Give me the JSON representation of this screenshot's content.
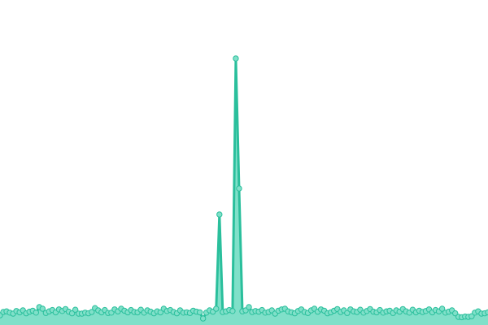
{
  "chart_data": {
    "type": "area",
    "color": "#2abf9c",
    "fill": "#80e0c9",
    "values": [
      3.0,
      4.0,
      4.2,
      3.8,
      3.5,
      4.3,
      3.9,
      4.5,
      3.6,
      4.1,
      4.4,
      3.8,
      5.5,
      5.0,
      3.7,
      4.2,
      4.6,
      3.9,
      4.8,
      4.3,
      4.9,
      4.1,
      3.6,
      4.7,
      3.5,
      3.5,
      3.8,
      3.6,
      4.0,
      5.2,
      4.5,
      3.9,
      4.6,
      3.7,
      3.8,
      4.8,
      4.2,
      5.0,
      4.4,
      3.9,
      4.6,
      4.0,
      3.9,
      4.7,
      3.8,
      4.5,
      4.1,
      3.6,
      4.2,
      3.9,
      5.0,
      4.3,
      4.6,
      4.0,
      3.6,
      4.5,
      3.8,
      3.9,
      3.7,
      4.4,
      4.1,
      3.9,
      2.0,
      3.8,
      4.5,
      4.1,
      5.0,
      34.0,
      4.0,
      4.2,
      4.6,
      4.3,
      82.0,
      42.0,
      4.2,
      4.5,
      5.5,
      4.0,
      4.3,
      4.1,
      4.6,
      3.8,
      4.0,
      4.5,
      3.5,
      4.4,
      4.8,
      5.0,
      4.2,
      3.9,
      3.6,
      4.3,
      4.8,
      4.0,
      3.7,
      4.5,
      5.0,
      4.1,
      4.8,
      4.4,
      3.6,
      3.9,
      4.4,
      4.9,
      4.0,
      4.5,
      3.7,
      4.8,
      4.2,
      4.0,
      4.7,
      3.8,
      4.3,
      4.9,
      4.1,
      3.9,
      4.6,
      3.8,
      4.2,
      4.4,
      3.7,
      4.5,
      4.1,
      4.9,
      4.2,
      3.8,
      4.7,
      3.9,
      4.4,
      4.0,
      4.3,
      4.8,
      3.9,
      4.6,
      4.2,
      5.0,
      3.8,
      4.1,
      4.5,
      3.6,
      2.5,
      2.4,
      2.6,
      2.5,
      2.7,
      3.8,
      4.2,
      3.5,
      3.6,
      3.9
    ],
    "ylim": [
      0,
      100
    ]
  }
}
